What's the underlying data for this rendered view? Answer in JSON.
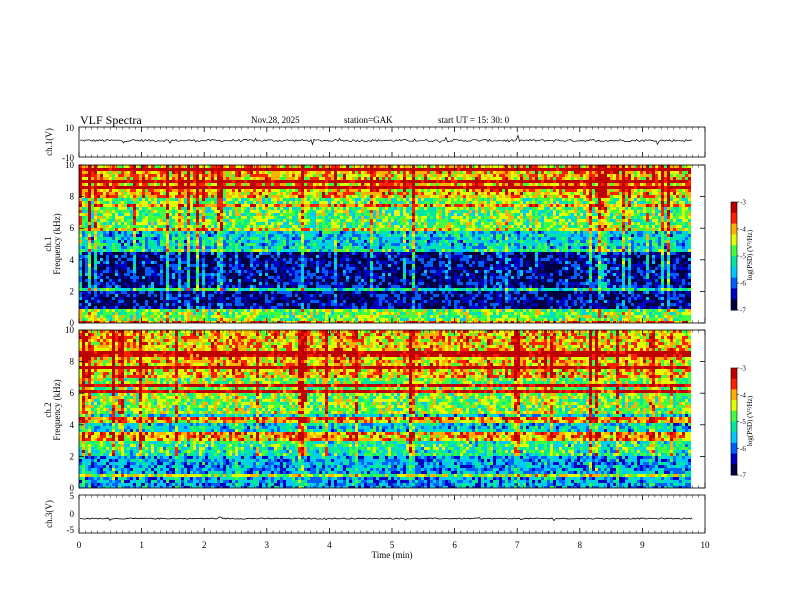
{
  "header": {
    "title": "VLF  Spectra",
    "date": "Nov.28, 2025",
    "station": "station=GAK",
    "start": "start  UT  =    15: 30: 0"
  },
  "chart_data": [
    {
      "type": "line",
      "name": "ch1-waveform",
      "ylabel": "ch.1(V)",
      "ylim": [
        -10,
        10
      ],
      "y_tick_labels": [
        "10",
        "-10"
      ],
      "x_range_min": [
        0,
        9.8
      ],
      "level_v": 1.0,
      "noise_v": 1.5
    },
    {
      "type": "heatmap",
      "name": "ch1-spectrogram",
      "ylabel_lines": [
        "ch.1",
        "Frequency  (kHz)"
      ],
      "ylim_khz": [
        0,
        10
      ],
      "y_tick_labels": [
        "0",
        "2",
        "4",
        "6",
        "8",
        "10"
      ],
      "x_range_min": [
        0,
        9.8
      ],
      "colorbar": {
        "label": "log(PSD) (V²/Hz)",
        "range": [
          -7,
          -3
        ],
        "tick_labels": [
          "-3",
          "-4",
          "-5",
          "-6",
          "-7"
        ]
      },
      "bands_khz": [
        {
          "from": 0.0,
          "to": 1.0,
          "level": -4.8
        },
        {
          "from": 1.0,
          "to": 4.8,
          "level": -6.6
        },
        {
          "from": 4.8,
          "to": 6.0,
          "level": -5.6
        },
        {
          "from": 6.0,
          "to": 8.0,
          "level": -4.9
        },
        {
          "from": 8.0,
          "to": 10.0,
          "level": -4.2
        }
      ]
    },
    {
      "type": "heatmap",
      "name": "ch2-spectrogram",
      "ylabel_lines": [
        "ch.2",
        "Frequency  (kHz)"
      ],
      "ylim_khz": [
        0,
        10
      ],
      "y_tick_labels": [
        "0",
        "2",
        "4",
        "6",
        "8",
        "10"
      ],
      "x_range_min": [
        0,
        9.8
      ],
      "colorbar": {
        "label": "log(PSD) (V²/Hz)",
        "range": [
          -7,
          -3
        ],
        "tick_labels": [
          "-3",
          "-4",
          "-5",
          "-6",
          "-7"
        ]
      },
      "bands_khz": [
        {
          "from": 0.0,
          "to": 2.0,
          "level": -5.8
        },
        {
          "from": 2.0,
          "to": 3.5,
          "level": -5.2
        },
        {
          "from": 3.5,
          "to": 5.0,
          "level": -5.6
        },
        {
          "from": 5.0,
          "to": 7.0,
          "level": -4.8
        },
        {
          "from": 7.0,
          "to": 10.0,
          "level": -4.2
        }
      ]
    },
    {
      "type": "line",
      "name": "ch3-waveform",
      "ylabel": "ch.3(V)",
      "ylim": [
        -5,
        5
      ],
      "y_tick_labels": [
        "5",
        "0",
        "-5"
      ],
      "x_range_min": [
        0,
        9.8
      ],
      "level_v": -1.2,
      "noise_v": 0.3
    }
  ],
  "x_axis": {
    "label": "Time  (min)",
    "range": [
      0,
      10
    ],
    "tick_labels": [
      "0",
      "1",
      "2",
      "3",
      "4",
      "5",
      "6",
      "7",
      "8",
      "9",
      "10"
    ]
  },
  "colors": {
    "colormap": [
      "#000040",
      "#0000c0",
      "#0060ff",
      "#00c8ff",
      "#00e8a0",
      "#40ff40",
      "#e0ff00",
      "#ffb000",
      "#ff2000",
      "#c00000"
    ],
    "trace": "#000000"
  }
}
